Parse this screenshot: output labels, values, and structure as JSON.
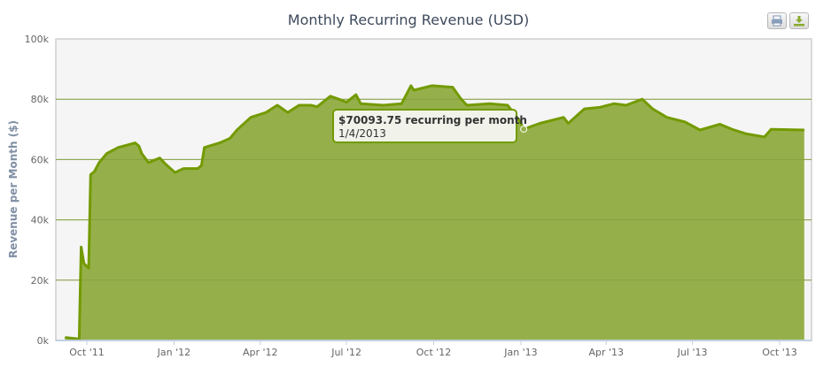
{
  "toolbar": {
    "print_icon": "printer-icon",
    "download_icon": "download-icon"
  },
  "chart_data": {
    "type": "area",
    "title": "Monthly Recurring Revenue (USD)",
    "xlabel": "",
    "ylabel": "Revenue per Month ($)",
    "ylim": [
      0,
      100000
    ],
    "yticks": [
      0,
      20000,
      40000,
      60000,
      80000,
      100000
    ],
    "ytick_labels": [
      "0k",
      "20k",
      "40k",
      "60k",
      "80k",
      "100k"
    ],
    "xticks": [
      "2011-10-01",
      "2012-01-01",
      "2012-04-01",
      "2012-07-01",
      "2012-10-01",
      "2013-01-01",
      "2013-04-01",
      "2013-07-01",
      "2013-10-01"
    ],
    "xtick_labels": [
      "Oct '11",
      "Jan '12",
      "Apr '12",
      "Jul '12",
      "Oct '12",
      "Jan '13",
      "Apr '13",
      "Jul '13",
      "Oct '13"
    ],
    "grid": true,
    "legend": "none",
    "colors": {
      "fill": "#95b04a",
      "line": "#739a00",
      "plot_bg": "#f5f5f5"
    },
    "series": [
      {
        "x": [
          "2011-09-08",
          "2011-09-22",
          "2011-09-23",
          "2011-09-25",
          "2011-09-28",
          "2011-10-03",
          "2011-10-05",
          "2011-10-09",
          "2011-10-14",
          "2011-10-22",
          "2011-11-03",
          "2011-11-21",
          "2011-11-25",
          "2011-11-28",
          "2011-12-05",
          "2011-12-17",
          "2011-12-23",
          "2012-01-02",
          "2012-01-11",
          "2012-01-26",
          "2012-01-30",
          "2012-02-02",
          "2012-02-18",
          "2012-02-29",
          "2012-03-08",
          "2012-03-22",
          "2012-04-07",
          "2012-04-19",
          "2012-04-30",
          "2012-05-12",
          "2012-05-24",
          "2012-05-31",
          "2012-06-14",
          "2012-06-23",
          "2012-07-01",
          "2012-07-11",
          "2012-07-16",
          "2012-08-09",
          "2012-08-28",
          "2012-09-07",
          "2012-09-10",
          "2012-09-29",
          "2012-10-21",
          "2012-10-30",
          "2012-11-05",
          "2012-11-29",
          "2012-12-18",
          "2012-12-31",
          "2013-01-04",
          "2013-01-21",
          "2013-02-15",
          "2013-02-20",
          "2013-03-09",
          "2013-03-25",
          "2013-04-09",
          "2013-04-22",
          "2013-05-09",
          "2013-05-20",
          "2013-06-04",
          "2013-06-23",
          "2013-07-09",
          "2013-07-30",
          "2013-08-12",
          "2013-08-27",
          "2013-09-15",
          "2013-09-22",
          "2013-10-27"
        ],
        "values": [
          1000,
          500,
          500,
          31000,
          25500,
          24000,
          55000,
          56000,
          59000,
          62000,
          64000,
          65500,
          64500,
          62000,
          59000,
          60500,
          58500,
          55700,
          57000,
          57000,
          58000,
          64000,
          65500,
          67000,
          70000,
          74000,
          75600,
          78000,
          75600,
          78000,
          78000,
          77500,
          81000,
          80000,
          79000,
          81500,
          78500,
          78000,
          78500,
          84500,
          83000,
          84500,
          84000,
          80000,
          78000,
          78500,
          78000,
          72700,
          70093.75,
          72000,
          74000,
          72000,
          76800,
          77300,
          78500,
          78000,
          80000,
          76800,
          74000,
          72500,
          69800,
          71700,
          70000,
          68500,
          67500,
          70000,
          69800
        ]
      }
    ],
    "tooltip": {
      "value_text": "$70093.75 recurring per month",
      "date_text": "1/4/2013",
      "x": "2013-01-04",
      "y": 70093.75
    }
  }
}
